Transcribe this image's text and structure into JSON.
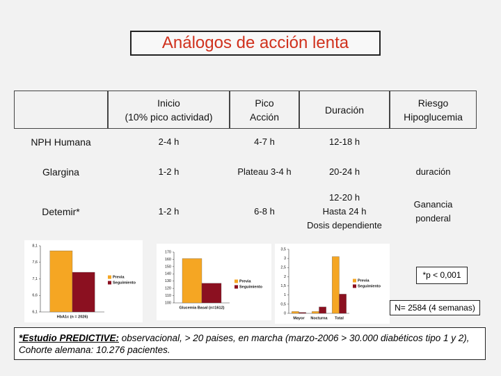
{
  "title": "Análogos de acción lenta",
  "table": {
    "header": [
      [
        "Inicio",
        "(10% pico actividad)"
      ],
      [
        "Pico",
        "Acción"
      ],
      [
        "Duración"
      ],
      [
        "Riesgo",
        "Hipoglucemia"
      ]
    ],
    "rows": [
      {
        "label": "NPH Humana",
        "cells": [
          [
            "2-4 h"
          ],
          [
            "4-7 h"
          ],
          [
            "12-18 h"
          ]
        ]
      },
      {
        "label": "Glargina",
        "cells": [
          [
            "1-2 h"
          ],
          [
            "Plateau 3-4 h"
          ],
          [
            "20-24 h"
          ],
          [
            "duración"
          ]
        ]
      },
      {
        "label": "Detemir*",
        "cells": [
          [
            "1-2 h"
          ],
          [
            "6-8 h"
          ],
          [
            "12-20 h",
            "Hasta 24 h",
            "Dosis dependiente"
          ],
          [
            "Ganancia",
            "ponderal"
          ]
        ]
      }
    ]
  },
  "charts": [
    {
      "type": "bar",
      "categories": [
        "HbA1c (n = 2026)"
      ],
      "series": [
        {
          "name": "Previa",
          "color": "#f5a623",
          "values": [
            7.95
          ]
        },
        {
          "name": "Seguimiento",
          "color": "#8b1020",
          "values": [
            7.3
          ]
        }
      ],
      "ylim": [
        6.1,
        8.1
      ],
      "yticks": [
        {
          "value": 6.1,
          "label": "6,1"
        },
        {
          "value": 6.6,
          "label": "6,6"
        },
        {
          "value": 7.1,
          "label": "7,1"
        },
        {
          "value": 7.6,
          "label": "7,6"
        },
        {
          "value": 8.1,
          "label": "8,1"
        }
      ]
    },
    {
      "type": "bar",
      "categories": [
        "Glucemia Basal (n=1612)"
      ],
      "series": [
        {
          "name": "Previa",
          "color": "#f5a623",
          "values": [
            161
          ]
        },
        {
          "name": "Seguimiento",
          "color": "#8b1020",
          "values": [
            127
          ]
        }
      ],
      "ylim": [
        100,
        170
      ],
      "yticks": [
        100,
        110,
        120,
        130,
        140,
        150,
        160,
        170
      ]
    },
    {
      "type": "bar",
      "categories": [
        "Mayor",
        "Nocturna",
        "Total"
      ],
      "series": [
        {
          "name": "Previa",
          "color": "#f5a623",
          "values": [
            0.1,
            0.1,
            3.1
          ]
        },
        {
          "name": "Seguimiento",
          "color": "#8b1020",
          "values": [
            0.05,
            0.35,
            1.05
          ]
        }
      ],
      "ylim": [
        0,
        3.5
      ],
      "yticks": [
        0,
        {
          "value": 0.5,
          "label": "0,5"
        },
        1,
        {
          "value": 1.5,
          "label": "1,5"
        },
        2,
        {
          "value": 2.5,
          "label": "2,5"
        },
        3,
        {
          "value": 3.5,
          "label": "3,5"
        }
      ]
    }
  ],
  "annotations": [
    "*p < 0,001",
    "N= 2584 (4 semanas)"
  ],
  "footnote": {
    "lead": "*Estudio PREDICTIVE:",
    "text": " observacional, > 20 paises, en marcha (marzo-2006 > 30.000 diabéticos tipo 1 y 2), Cohorte alemana: 10.276 pacientes."
  }
}
